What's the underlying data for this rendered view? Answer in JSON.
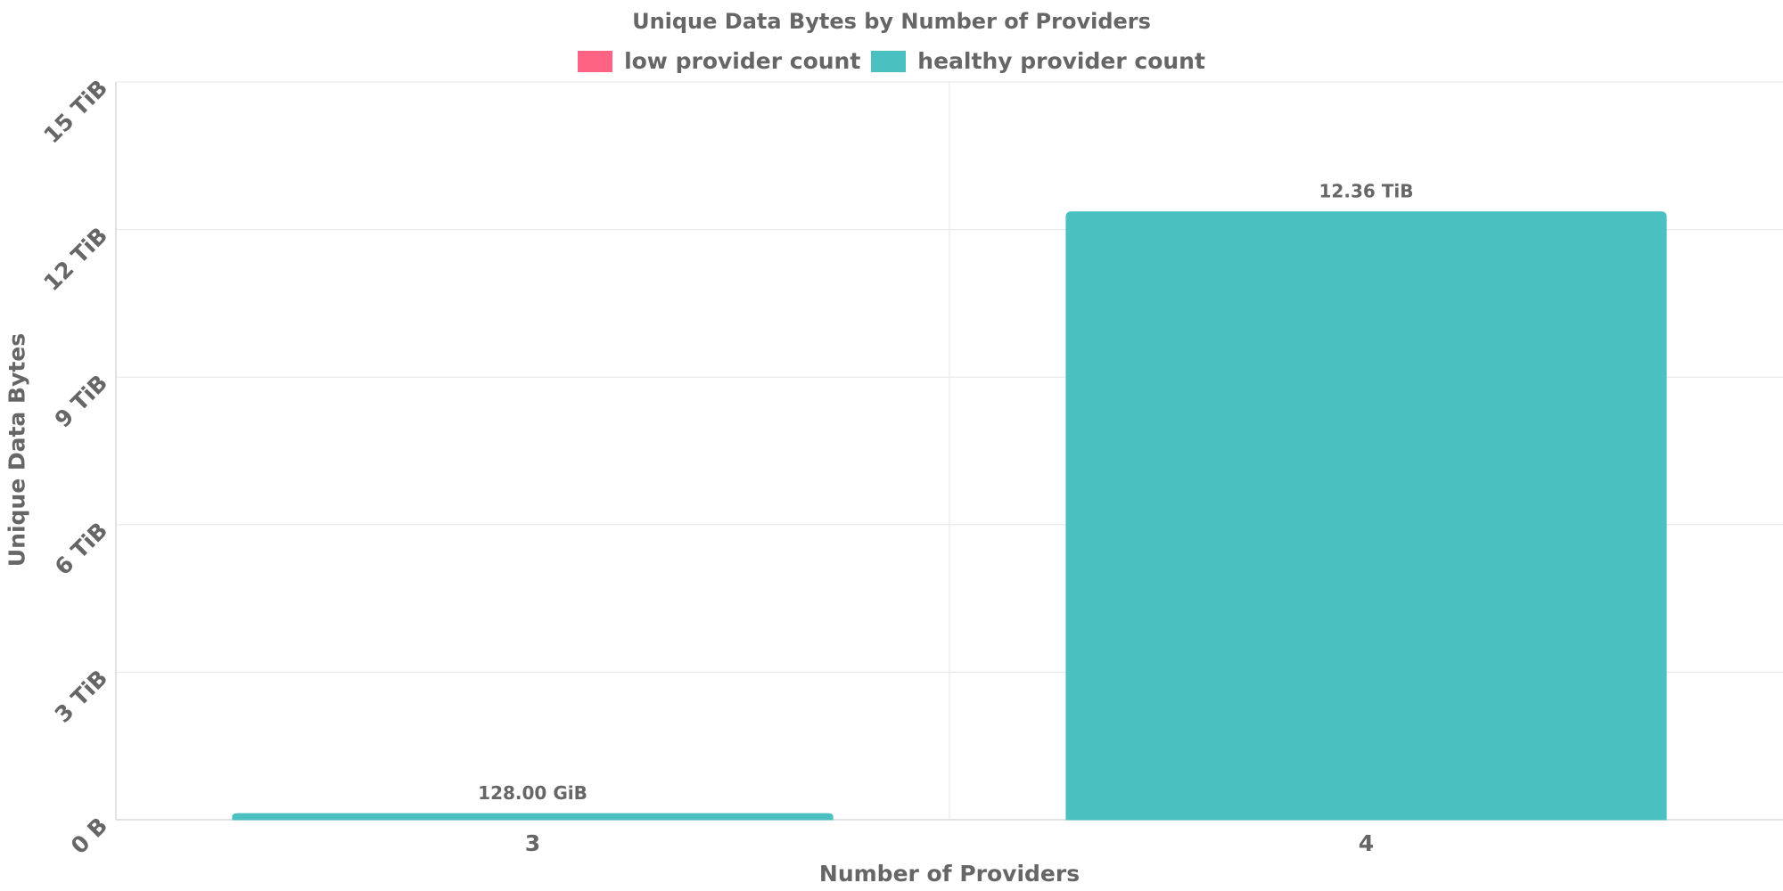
{
  "chart_data": {
    "type": "bar",
    "title": "Unique Data Bytes by Number of Providers",
    "xlabel": "Number of Providers",
    "ylabel": "Unique Data Bytes",
    "categories": [
      "3",
      "4"
    ],
    "values_tib": [
      0.125,
      12.36
    ],
    "value_labels": [
      "128.00 GiB",
      "12.36 TiB"
    ],
    "bar_series": [
      "healthy provider count",
      "healthy provider count"
    ],
    "ylim_tib": [
      0,
      15
    ],
    "y_ticks_tib": [
      0,
      3,
      6,
      9,
      12,
      15
    ],
    "y_tick_labels": [
      "0 B",
      "3 TiB",
      "6 TiB",
      "9 TiB",
      "12 TiB",
      "15 TiB"
    ],
    "legend": [
      {
        "label": "low provider count",
        "color": "#FF6384"
      },
      {
        "label": "healthy provider count",
        "color": "#4BC0C0"
      }
    ],
    "legend_position": "top",
    "grid": true
  }
}
